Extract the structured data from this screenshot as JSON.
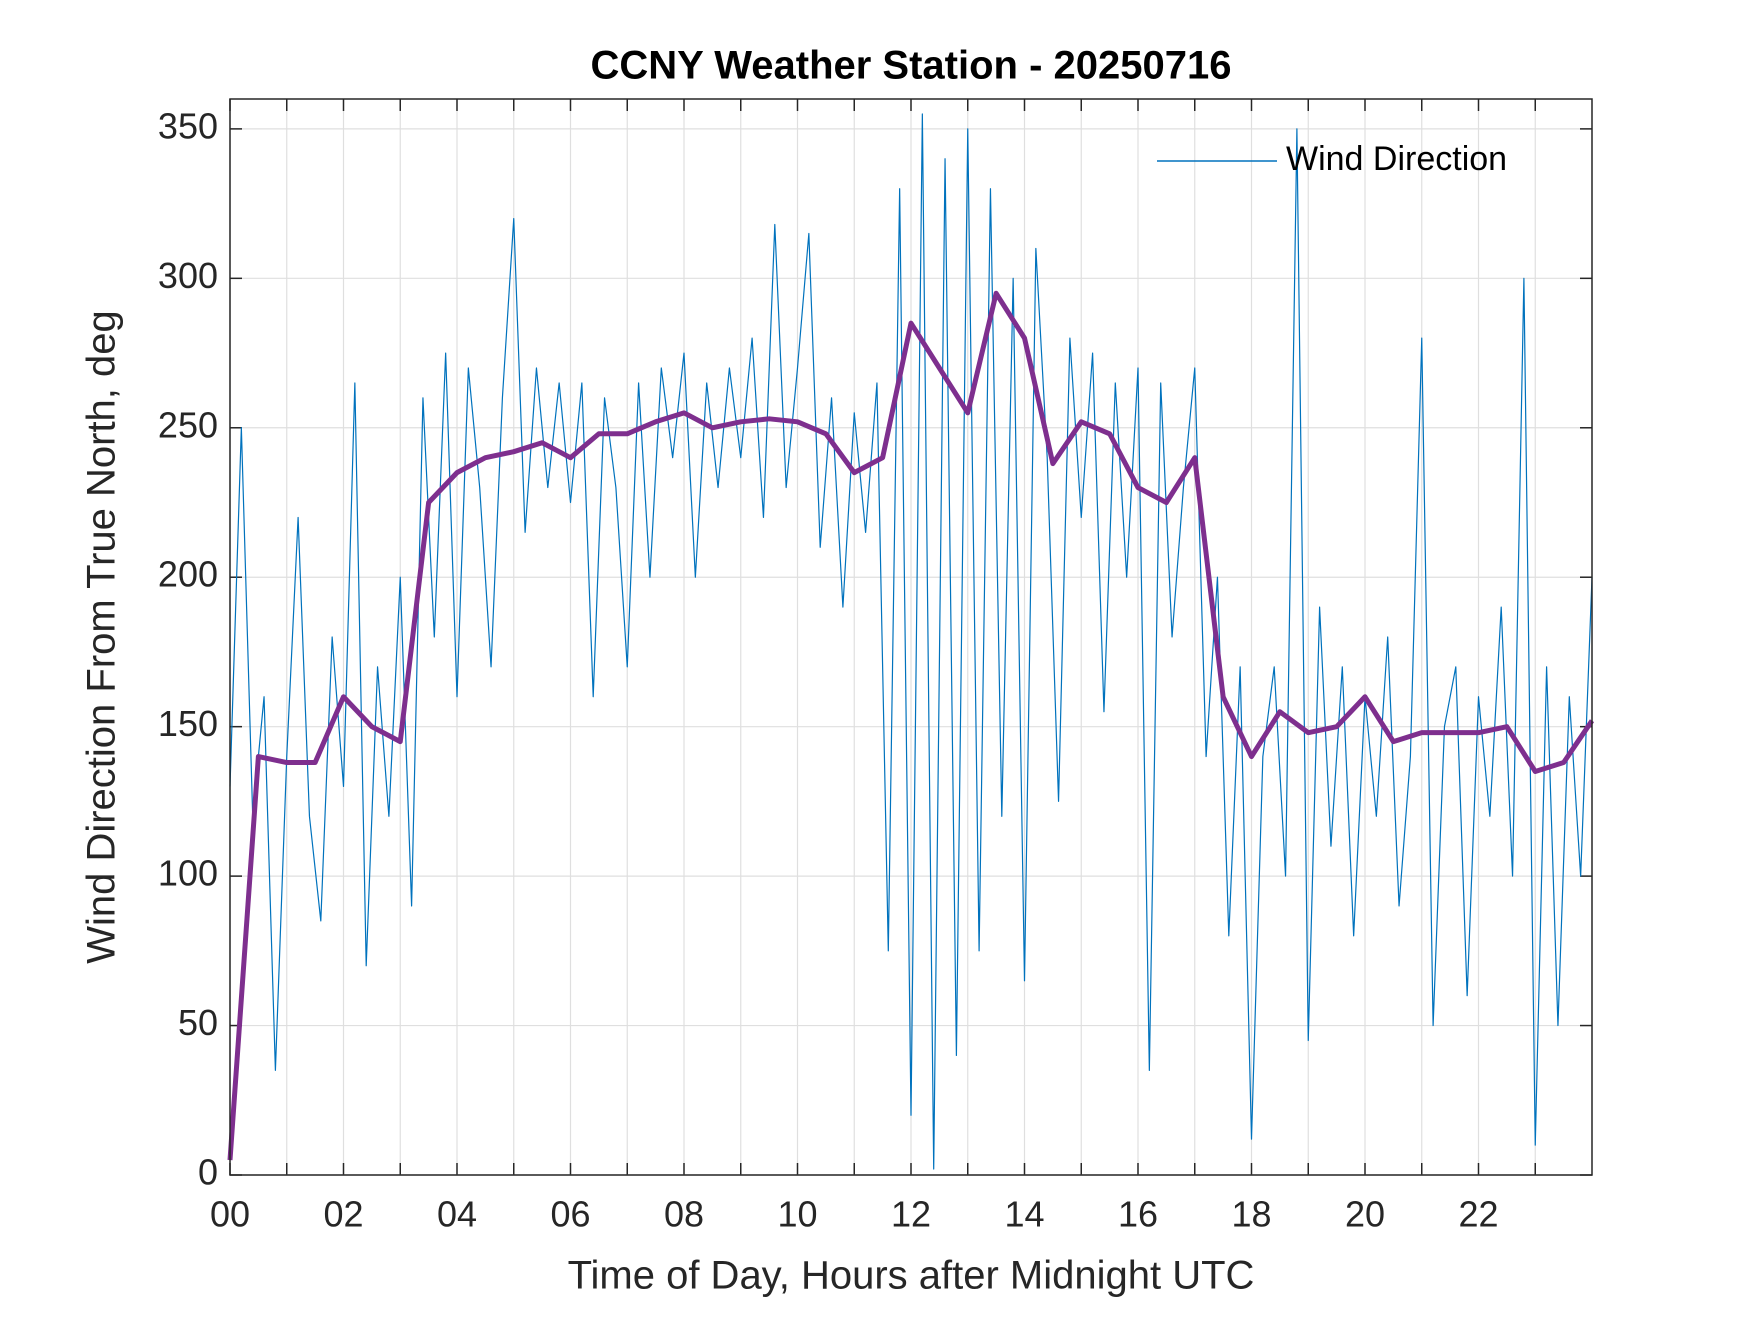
{
  "chart_data": {
    "type": "line",
    "title": "CCNY Weather Station - 20250716",
    "xlabel": "Time of Day, Hours after Midnight UTC",
    "ylabel": "Wind Direction From True North, deg",
    "xlim": [
      0,
      24
    ],
    "ylim": [
      0,
      360
    ],
    "xticks": [
      {
        "value": 0,
        "label": "00"
      },
      {
        "value": 2,
        "label": "02"
      },
      {
        "value": 4,
        "label": "04"
      },
      {
        "value": 6,
        "label": "06"
      },
      {
        "value": 8,
        "label": "08"
      },
      10,
      12,
      14,
      16,
      18,
      20,
      22
    ],
    "xminor_ticks": [
      1,
      3,
      5,
      7,
      9,
      11,
      13,
      15,
      17,
      19,
      21,
      23
    ],
    "yticks": [
      0,
      50,
      100,
      150,
      200,
      250,
      300,
      350
    ],
    "grid": true,
    "legend": "northeast",
    "series": [
      {
        "name": "Wind Direction",
        "color": "#0072bd",
        "width": 1.2,
        "x": [
          0,
          0.2,
          0.4,
          0.6,
          0.8,
          1,
          1.2,
          1.4,
          1.6,
          1.8,
          2,
          2.2,
          2.4,
          2.6,
          2.8,
          3,
          3.2,
          3.4,
          3.6,
          3.8,
          4,
          4.2,
          4.4,
          4.6,
          4.8,
          5,
          5.2,
          5.4,
          5.6,
          5.8,
          6,
          6.2,
          6.4,
          6.6,
          6.8,
          7,
          7.2,
          7.4,
          7.6,
          7.8,
          8,
          8.2,
          8.4,
          8.6,
          8.8,
          9,
          9.2,
          9.4,
          9.6,
          9.8,
          10,
          10.2,
          10.4,
          10.6,
          10.8,
          11,
          11.2,
          11.4,
          11.6,
          11.8,
          12,
          12.2,
          12.4,
          12.6,
          12.8,
          13,
          13.2,
          13.4,
          13.6,
          13.8,
          14,
          14.2,
          14.4,
          14.6,
          14.8,
          15,
          15.2,
          15.4,
          15.6,
          15.8,
          16,
          16.2,
          16.4,
          16.6,
          16.8,
          17,
          17.2,
          17.4,
          17.6,
          17.8,
          18,
          18.2,
          18.4,
          18.6,
          18.8,
          19,
          19.2,
          19.4,
          19.6,
          19.8,
          20,
          20.2,
          20.4,
          20.6,
          20.8,
          21,
          21.2,
          21.4,
          21.6,
          21.8,
          22,
          22.2,
          22.4,
          22.6,
          22.8,
          23,
          23.2,
          23.4,
          23.6,
          23.8,
          24
        ],
        "values": [
          130,
          250,
          120,
          160,
          35,
          140,
          220,
          120,
          85,
          180,
          130,
          265,
          70,
          170,
          120,
          200,
          90,
          260,
          180,
          275,
          160,
          270,
          230,
          170,
          260,
          320,
          215,
          270,
          230,
          265,
          225,
          265,
          160,
          260,
          230,
          170,
          265,
          200,
          270,
          240,
          275,
          200,
          265,
          230,
          270,
          240,
          280,
          220,
          318,
          230,
          270,
          315,
          210,
          260,
          190,
          255,
          215,
          265,
          75,
          330,
          20,
          355,
          2,
          340,
          40,
          350,
          75,
          330,
          120,
          300,
          65,
          310,
          240,
          125,
          280,
          220,
          275,
          155,
          265,
          200,
          270,
          35,
          265,
          180,
          230,
          270,
          140,
          200,
          80,
          170,
          12,
          140,
          170,
          100,
          350,
          45,
          190,
          110,
          170,
          80,
          160,
          120,
          180,
          90,
          140,
          280,
          50,
          150,
          170,
          60,
          160,
          120,
          190,
          100,
          300,
          10,
          170,
          50,
          160,
          100,
          200
        ]
      },
      {
        "color": "#7e2f8e",
        "width": 5,
        "x": [
          0,
          0.5,
          1,
          1.5,
          2,
          2.5,
          3,
          3.5,
          4,
          4.5,
          5,
          5.5,
          6,
          6.5,
          7,
          7.5,
          8,
          8.5,
          9,
          9.5,
          10,
          10.5,
          11,
          11.5,
          12,
          12.5,
          13,
          13.5,
          14,
          14.5,
          15,
          15.5,
          16,
          16.5,
          17,
          17.5,
          18,
          18.5,
          19,
          19.5,
          20,
          20.5,
          21,
          21.5,
          22,
          22.5,
          23,
          23.5,
          24
        ],
        "values": [
          5,
          140,
          138,
          138,
          160,
          150,
          145,
          225,
          235,
          240,
          242,
          245,
          240,
          248,
          248,
          252,
          255,
          250,
          252,
          253,
          252,
          248,
          235,
          240,
          285,
          270,
          255,
          295,
          280,
          238,
          252,
          248,
          230,
          225,
          240,
          160,
          140,
          155,
          148,
          150,
          160,
          145,
          148,
          148,
          148,
          150,
          135,
          138,
          152
        ]
      }
    ]
  }
}
